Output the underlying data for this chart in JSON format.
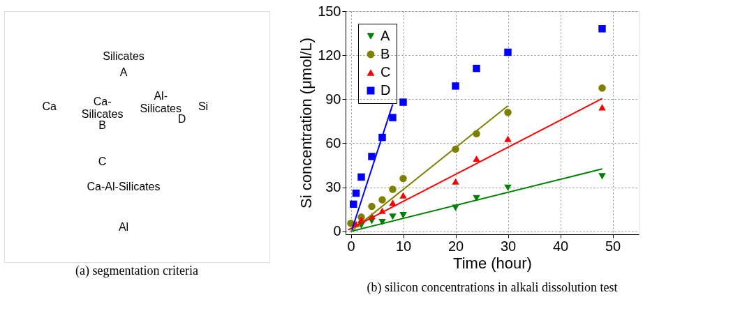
{
  "chart_data": [
    {
      "type": "other",
      "title": "(a) segmentation criteria",
      "annotations": [
        "Silicates",
        "A",
        "Ca-\nSilicates",
        "B",
        "Al-\nSilicates",
        "D",
        "C",
        "Ca-Al-Silicates",
        "Ca",
        "Si",
        "Al"
      ]
    },
    {
      "type": "scatter",
      "title": "(b) silicon concentrations in alkali dissolution test",
      "xlabel": "Time (hour)",
      "ylabel": "Si concentration (μmol/L)",
      "xlim": [
        -1,
        55
      ],
      "xticks": [
        0,
        10,
        20,
        30,
        40,
        50
      ],
      "ylim": [
        -2,
        150
      ],
      "yticks": [
        0,
        30,
        60,
        90,
        120,
        150
      ],
      "grid": true,
      "legend": "top left",
      "series": [
        {
          "name": "A",
          "color": "#008000",
          "marker": "triangle_down",
          "x": [
            2,
            4,
            6,
            8,
            10,
            20,
            24,
            30,
            48
          ],
          "values": [
            4,
            7,
            6.3,
            10,
            11,
            16,
            22.6,
            29.7,
            37.5
          ]
        },
        {
          "name": "B",
          "color": "#808000",
          "marker": "circle",
          "x": [
            0,
            2,
            4,
            6,
            8,
            10,
            20,
            24,
            30,
            48
          ],
          "values": [
            5.5,
            9.7,
            17,
            21.5,
            28.6,
            36,
            56,
            66.5,
            81,
            97.6
          ]
        },
        {
          "name": "C",
          "color": "#ff0000",
          "marker": "triangle",
          "x": [
            1,
            2,
            4,
            6,
            8,
            10,
            20,
            24,
            30,
            48
          ],
          "values": [
            5,
            8,
            10.5,
            14,
            19.5,
            24.5,
            34,
            49.5,
            63,
            84.5
          ]
        },
        {
          "name": "D",
          "color": "#0000ff",
          "marker": "square",
          "x": [
            0.5,
            1,
            2,
            4,
            6,
            8,
            10,
            20,
            24,
            30,
            48
          ],
          "values": [
            18.5,
            26,
            37,
            51,
            64,
            77.5,
            88,
            99,
            111,
            122,
            138
          ]
        },
        {
          "type": "line",
          "color": "#008000",
          "x": [
            0,
            48
          ],
          "values": [
            0,
            42.5
          ]
        },
        {
          "type": "line",
          "color": "#808000",
          "x": [
            0,
            30
          ],
          "values": [
            0,
            85.5
          ]
        },
        {
          "type": "line",
          "color": "#ff0000",
          "x": [
            -0.5,
            48
          ],
          "values": [
            1,
            90.5
          ]
        },
        {
          "type": "line",
          "color": "#0000ff",
          "x": [
            0.2,
            8
          ],
          "values": [
            1,
            86.5
          ]
        }
      ]
    }
  ]
}
